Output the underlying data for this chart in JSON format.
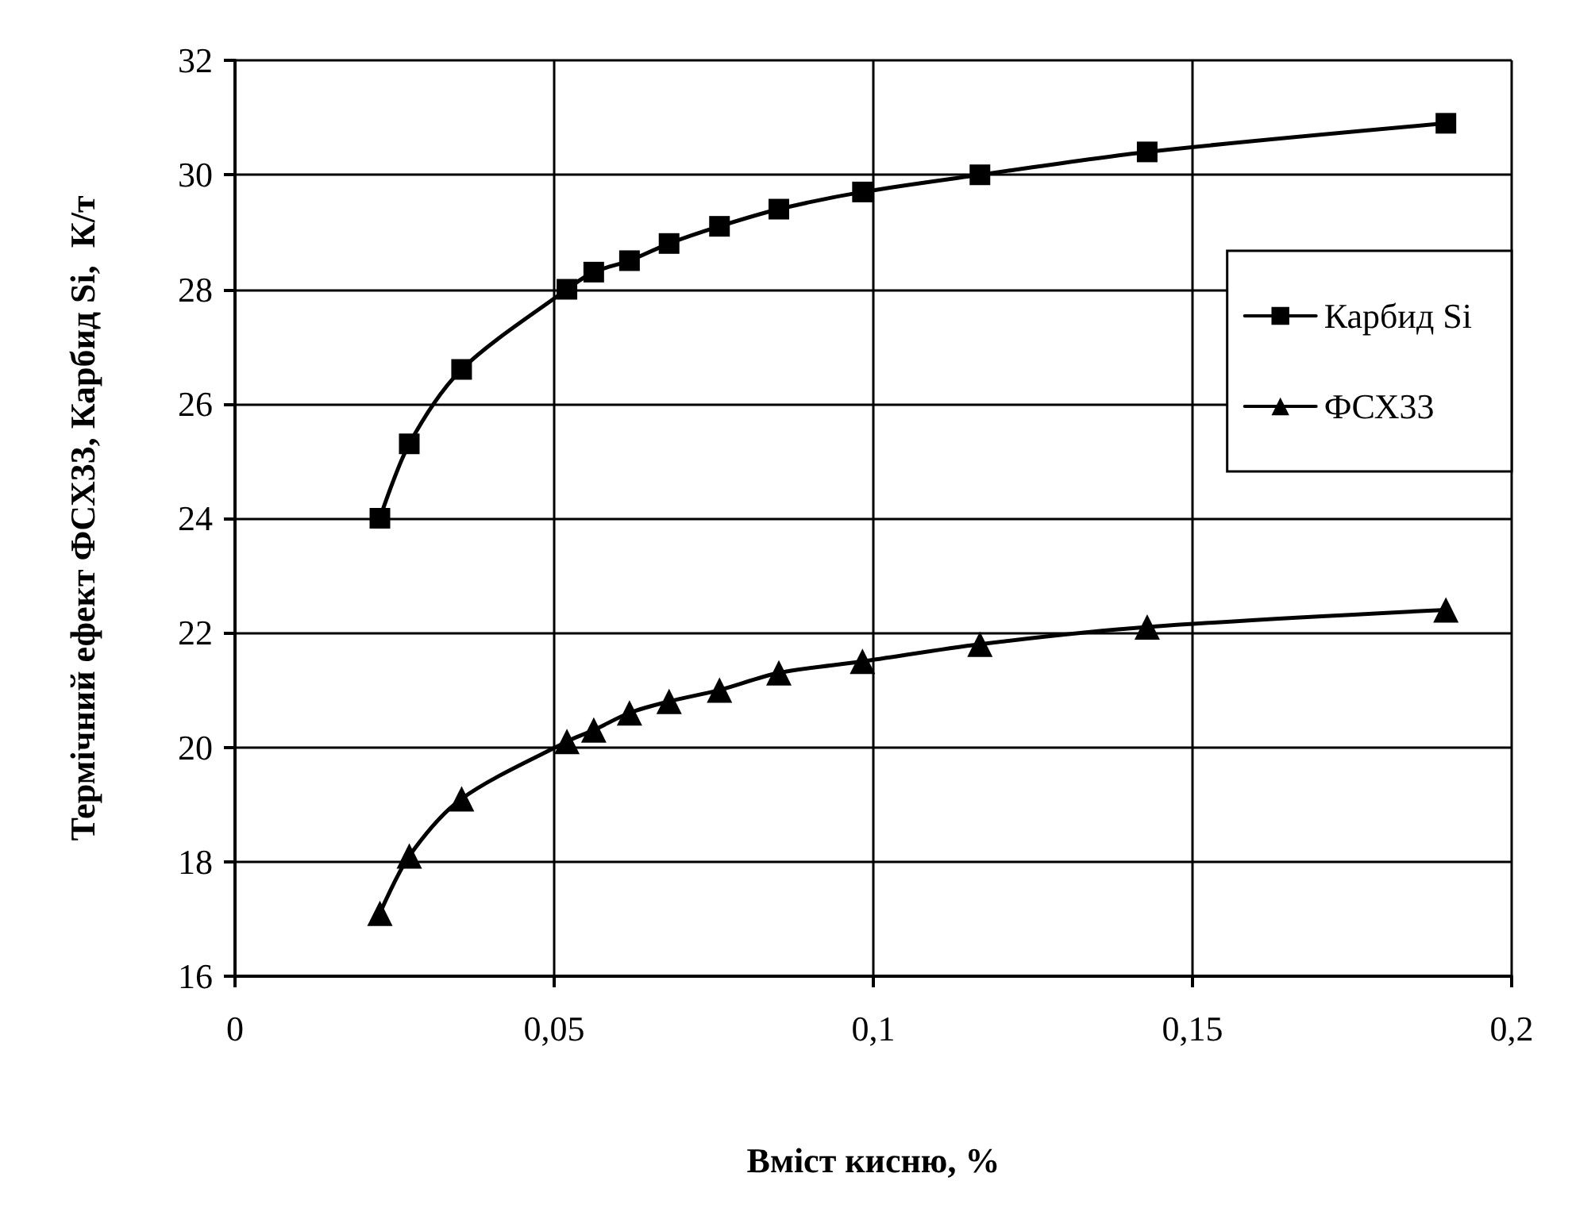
{
  "chart_data": {
    "type": "line",
    "xlabel": "Вміст кисню, %",
    "ylabel": "Термічний ефект ФСХ33, Карбид Si,  К/т",
    "x": [
      0.0227,
      0.0273,
      0.0355,
      0.052,
      0.0562,
      0.0618,
      0.068,
      0.0759,
      0.0852,
      0.0983,
      0.1167,
      0.1429,
      0.1897
    ],
    "series": [
      {
        "name": "Карбид Si",
        "color": "#000000",
        "marker": "square",
        "values": [
          24.0,
          25.3,
          26.6,
          28.0,
          28.3,
          28.5,
          28.8,
          29.1,
          29.4,
          29.7,
          30.0,
          30.4,
          30.9
        ]
      },
      {
        "name": "ФСХ33",
        "color": "#000000",
        "marker": "triangle",
        "values": [
          17.1,
          18.1,
          19.1,
          20.1,
          20.3,
          20.6,
          20.8,
          21.0,
          21.3,
          21.5,
          21.8,
          22.1,
          22.4
        ]
      }
    ],
    "xlim": [
      0,
      0.2
    ],
    "xticks": [
      0,
      {
        "value": 0.05,
        "label": "0,05"
      },
      {
        "value": 0.1,
        "label": "0,1"
      },
      {
        "value": 0.15,
        "label": "0,15"
      },
      {
        "value": 0.2,
        "label": "0,2"
      }
    ],
    "ylim": [
      16,
      32
    ],
    "yticks": [
      16,
      18,
      20,
      22,
      24,
      26,
      28,
      30,
      32
    ],
    "grid": true,
    "legend": "right",
    "line_style": "solid"
  }
}
